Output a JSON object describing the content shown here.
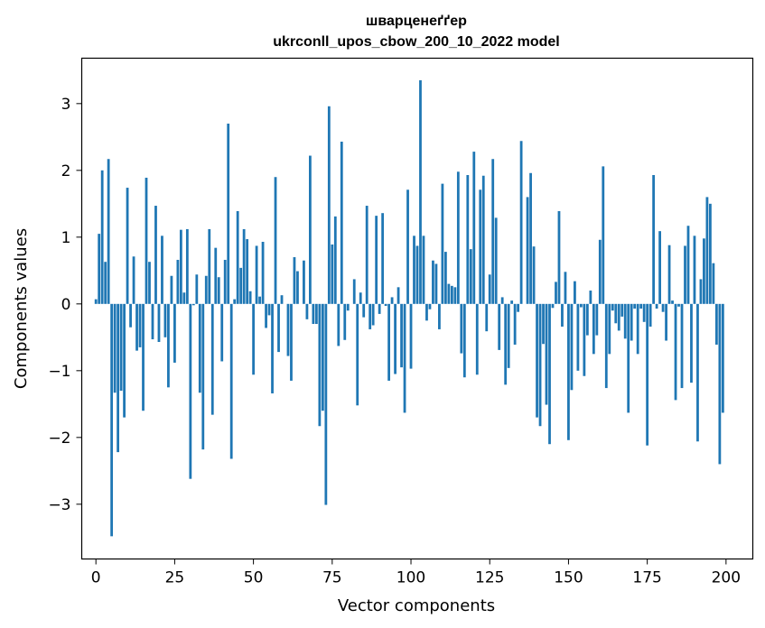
{
  "chart_data": {
    "type": "bar",
    "title": "шварценеґґер",
    "subtitle": "ukrconll_upos_cbow_200_10_2022 model",
    "xlabel": "Vector components",
    "ylabel": "Components values",
    "xlim": [
      -4.5,
      208.5
    ],
    "ylim": [
      -3.82,
      3.68
    ],
    "xticks": [
      0,
      25,
      50,
      75,
      100,
      125,
      150,
      175,
      200
    ],
    "yticks": [
      -3,
      -2,
      -1,
      0,
      1,
      2,
      3
    ],
    "xtick_labels": [
      "0",
      "25",
      "50",
      "75",
      "100",
      "125",
      "150",
      "175",
      "200"
    ],
    "ytick_labels": [
      "−3",
      "−2",
      "−1",
      "0",
      "1",
      "2",
      "3"
    ],
    "bar_color": "#1f77b4",
    "grid": false,
    "x": [
      0,
      1,
      2,
      3,
      4,
      5,
      6,
      7,
      8,
      9,
      10,
      11,
      12,
      13,
      14,
      15,
      16,
      17,
      18,
      19,
      20,
      21,
      22,
      23,
      24,
      25,
      26,
      27,
      28,
      29,
      30,
      31,
      32,
      33,
      34,
      35,
      36,
      37,
      38,
      39,
      40,
      41,
      42,
      43,
      44,
      45,
      46,
      47,
      48,
      49,
      50,
      51,
      52,
      53,
      54,
      55,
      56,
      57,
      58,
      59,
      60,
      61,
      62,
      63,
      64,
      65,
      66,
      67,
      68,
      69,
      70,
      71,
      72,
      73,
      74,
      75,
      76,
      77,
      78,
      79,
      80,
      81,
      82,
      83,
      84,
      85,
      86,
      87,
      88,
      89,
      90,
      91,
      92,
      93,
      94,
      95,
      96,
      97,
      98,
      99,
      100,
      101,
      102,
      103,
      104,
      105,
      106,
      107,
      108,
      109,
      110,
      111,
      112,
      113,
      114,
      115,
      116,
      117,
      118,
      119,
      120,
      121,
      122,
      123,
      124,
      125,
      126,
      127,
      128,
      129,
      130,
      131,
      132,
      133,
      134,
      135,
      136,
      137,
      138,
      139,
      140,
      141,
      142,
      143,
      144,
      145,
      146,
      147,
      148,
      149,
      150,
      151,
      152,
      153,
      154,
      155,
      156,
      157,
      158,
      159,
      160,
      161,
      162,
      163,
      164,
      165,
      166,
      167,
      168,
      169,
      170,
      171,
      172,
      173,
      174,
      175,
      176,
      177,
      178,
      179,
      180,
      181,
      182,
      183,
      184,
      185,
      186,
      187,
      188,
      189,
      190,
      191,
      192,
      193,
      194,
      195,
      196,
      197,
      198,
      199
    ],
    "values": [
      0.07,
      1.05,
      2.0,
      0.63,
      2.17,
      -3.48,
      -1.33,
      -2.22,
      -1.3,
      -1.7,
      1.74,
      -0.35,
      0.71,
      -0.7,
      -0.65,
      -1.6,
      1.89,
      0.63,
      -0.53,
      1.47,
      -0.57,
      1.02,
      -0.5,
      -1.25,
      0.42,
      -0.88,
      0.66,
      1.11,
      0.17,
      1.12,
      -2.62,
      -0.02,
      0.44,
      -1.33,
      -2.18,
      0.42,
      1.12,
      -1.66,
      0.84,
      0.4,
      -0.86,
      0.66,
      2.7,
      -2.32,
      0.07,
      1.39,
      0.54,
      1.12,
      0.97,
      0.19,
      -1.06,
      0.87,
      0.11,
      0.93,
      -0.36,
      -0.17,
      -1.34,
      1.9,
      -0.72,
      0.13,
      0.0,
      -0.78,
      -1.15,
      0.7,
      0.49,
      0.0,
      0.65,
      -0.23,
      2.22,
      -0.3,
      -0.3,
      -1.83,
      -1.6,
      -3.01,
      2.96,
      0.89,
      1.31,
      -0.63,
      2.43,
      -0.54,
      -0.1,
      0.0,
      0.37,
      -1.52,
      0.17,
      -0.2,
      1.47,
      -0.38,
      -0.32,
      1.32,
      -0.15,
      1.36,
      -0.03,
      -1.15,
      0.1,
      -1.05,
      0.25,
      -0.95,
      -1.63,
      1.71,
      -0.97,
      1.02,
      0.87,
      3.35,
      1.02,
      -0.25,
      -0.08,
      0.65,
      0.6,
      -0.38,
      1.8,
      0.78,
      0.3,
      0.27,
      0.25,
      1.98,
      -0.74,
      -1.1,
      1.93,
      0.82,
      2.28,
      -1.06,
      1.71,
      1.92,
      -0.41,
      0.44,
      2.17,
      1.29,
      -0.69,
      0.1,
      -1.21,
      -0.96,
      0.05,
      -0.61,
      -0.12,
      2.44,
      0.0,
      1.6,
      1.96,
      0.86,
      -1.7,
      -1.83,
      -0.6,
      -1.51,
      -2.1,
      -0.06,
      0.33,
      1.39,
      -0.34,
      0.48,
      -2.04,
      -1.29,
      0.34,
      -1.0,
      -0.05,
      -1.08,
      -0.47,
      0.2,
      -0.75,
      -0.47,
      0.96,
      2.06,
      -1.26,
      -0.75,
      -0.1,
      -0.29,
      -0.4,
      -0.19,
      -0.52,
      -1.63,
      -0.55,
      -0.07,
      -0.75,
      -0.07,
      -0.27,
      -2.12,
      -0.34,
      1.93,
      -0.07,
      1.09,
      -0.12,
      -0.55,
      0.88,
      0.05,
      -1.44,
      -0.04,
      -1.26,
      0.87,
      1.17,
      -1.18,
      1.02,
      -2.06,
      0.37,
      0.98,
      1.6,
      1.5,
      0.61,
      -0.61,
      -2.4,
      -1.63
    ]
  }
}
